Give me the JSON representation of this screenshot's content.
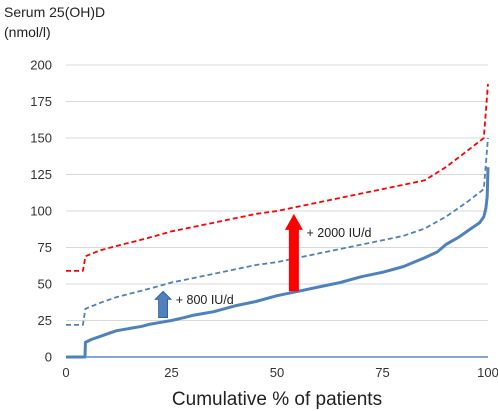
{
  "chart_data": {
    "type": "line",
    "ylabel_line1": "Serum 25(OH)D",
    "ylabel_line2": "(nmol/l)",
    "xlabel": "Cumulative % of patients",
    "xlim": [
      0,
      100
    ],
    "ylim": [
      0,
      200
    ],
    "x_ticks": [
      0,
      25,
      50,
      75,
      100
    ],
    "y_ticks": [
      0,
      25,
      50,
      75,
      100,
      125,
      150,
      175,
      200
    ],
    "grid": "horizontal",
    "colors": {
      "red": "#ff0000",
      "blue": "#4f81bd",
      "baseline": "#3c72b8",
      "text": "#333333"
    },
    "series": [
      {
        "style": "solid",
        "color": "#4f81bd",
        "points": [
          [
            0,
            0
          ],
          [
            4.5,
            0
          ],
          [
            4.6,
            10
          ],
          [
            6,
            12
          ],
          [
            8,
            14
          ],
          [
            10,
            16
          ],
          [
            12,
            18
          ],
          [
            15,
            19.5
          ],
          [
            18,
            21
          ],
          [
            20,
            22.5
          ],
          [
            22,
            23.5
          ],
          [
            25,
            25
          ],
          [
            28,
            27
          ],
          [
            30,
            28.5
          ],
          [
            35,
            31
          ],
          [
            40,
            35
          ],
          [
            45,
            38
          ],
          [
            50,
            42
          ],
          [
            55,
            45
          ],
          [
            60,
            48
          ],
          [
            65,
            51
          ],
          [
            70,
            55
          ],
          [
            75,
            58
          ],
          [
            80,
            62
          ],
          [
            85,
            68
          ],
          [
            88,
            72
          ],
          [
            90,
            77
          ],
          [
            93,
            82
          ],
          [
            96,
            88
          ],
          [
            98,
            92
          ],
          [
            99,
            96
          ],
          [
            99.5,
            102
          ],
          [
            99.8,
            110
          ],
          [
            100,
            130
          ]
        ]
      },
      {
        "style": "dashed",
        "color": "#4f81bd",
        "points": [
          [
            0,
            22
          ],
          [
            4,
            22
          ],
          [
            4.6,
            33
          ],
          [
            8,
            37
          ],
          [
            12,
            41
          ],
          [
            16,
            44
          ],
          [
            20,
            47
          ],
          [
            25,
            51
          ],
          [
            30,
            54
          ],
          [
            35,
            57
          ],
          [
            40,
            60
          ],
          [
            45,
            63
          ],
          [
            50,
            65
          ],
          [
            55,
            68
          ],
          [
            60,
            71
          ],
          [
            65,
            74
          ],
          [
            70,
            77
          ],
          [
            75,
            80
          ],
          [
            80,
            83
          ],
          [
            85,
            88
          ],
          [
            90,
            96
          ],
          [
            95,
            106
          ],
          [
            99,
            115
          ],
          [
            100,
            150
          ]
        ]
      },
      {
        "style": "dashed",
        "color": "#ff0000",
        "points": [
          [
            0,
            59
          ],
          [
            4,
            59
          ],
          [
            4.6,
            69
          ],
          [
            8,
            73
          ],
          [
            12,
            76
          ],
          [
            16,
            79
          ],
          [
            20,
            82
          ],
          [
            25,
            86
          ],
          [
            30,
            89
          ],
          [
            35,
            92
          ],
          [
            40,
            95
          ],
          [
            45,
            98
          ],
          [
            50,
            100
          ],
          [
            55,
            103
          ],
          [
            60,
            106
          ],
          [
            65,
            109
          ],
          [
            70,
            112
          ],
          [
            75,
            115
          ],
          [
            80,
            118
          ],
          [
            85,
            121
          ],
          [
            90,
            130
          ],
          [
            95,
            141
          ],
          [
            99,
            150
          ],
          [
            100,
            187
          ]
        ]
      }
    ],
    "annotations": [
      {
        "label": "+ 800 IU/d",
        "arrow_x": 23,
        "arrow_from": 27,
        "arrow_to": 45,
        "arrow_color": "#4f81bd",
        "label_x": 26,
        "label_y": 39
      },
      {
        "label": "+ 2000 IU/d",
        "arrow_x": 54,
        "arrow_from": 45,
        "arrow_to": 98,
        "arrow_color": "#ff0000",
        "label_x": 57,
        "label_y": 85
      }
    ]
  }
}
